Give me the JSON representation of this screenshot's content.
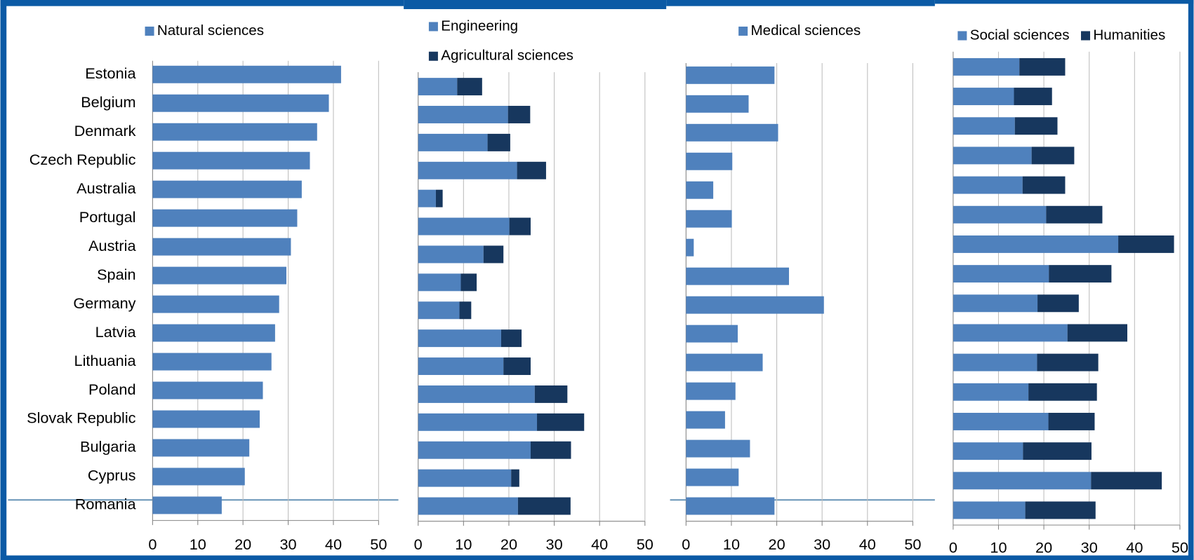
{
  "chart_data": [
    {
      "type": "bar",
      "orientation": "horizontal",
      "stacked": true,
      "categories": [
        "Estonia",
        "Belgium",
        "Denmark",
        "Czech Republic",
        "Australia",
        "Portugal",
        "Austria",
        "Spain",
        "Germany",
        "Latvia",
        "Lithuania",
        "Poland",
        "Slovak Republic",
        "Bulgaria",
        "Cyprus",
        "Romania"
      ],
      "series": [
        {
          "name": "Natural sciences",
          "color": "#4f81bd",
          "values": [
            41.7,
            39,
            36.4,
            34.8,
            33,
            32,
            30.6,
            29.6,
            28,
            27.1,
            26.3,
            24.4,
            23.7,
            21.4,
            20.4,
            15.3
          ]
        }
      ],
      "xlim": [
        0,
        50
      ],
      "xticks": [
        0,
        10,
        20,
        30,
        40,
        50
      ],
      "grid": true
    },
    {
      "type": "bar",
      "orientation": "horizontal",
      "stacked": true,
      "series": [
        {
          "name": "Engineering",
          "color": "#4f81bd",
          "values": [
            8.6,
            19.8,
            15.3,
            21.8,
            3.9,
            20.1,
            14.4,
            9.4,
            9.1,
            18.3,
            18.8,
            25.7,
            26.2,
            24.8,
            20.5,
            22
          ]
        },
        {
          "name": "Agricultural sciences",
          "color": "#17375e",
          "values": [
            5.5,
            4.9,
            5,
            6.4,
            1.5,
            4.7,
            4.4,
            3.5,
            2.6,
            4.5,
            6,
            7.2,
            10.4,
            8.9,
            1.8,
            11.6
          ]
        }
      ],
      "xlim": [
        0,
        50
      ],
      "xticks": [
        0,
        10,
        20,
        30,
        40,
        50
      ],
      "grid": true
    },
    {
      "type": "bar",
      "orientation": "horizontal",
      "stacked": true,
      "series": [
        {
          "name": "Medical sciences",
          "color": "#4f81bd",
          "values": [
            19.5,
            13.8,
            20.3,
            10.2,
            6,
            10.1,
            1.7,
            22.7,
            30.4,
            11.4,
            16.9,
            10.9,
            8.6,
            14.1,
            11.6,
            19.5
          ]
        }
      ],
      "xlim": [
        0,
        50
      ],
      "xticks": [
        0,
        10,
        20,
        30,
        40,
        50
      ],
      "grid": true
    },
    {
      "type": "bar",
      "orientation": "horizontal",
      "stacked": true,
      "series": [
        {
          "name": "Social sciences",
          "color": "#4f81bd",
          "values": [
            14.6,
            13.4,
            13.6,
            17.3,
            15.3,
            20.5,
            36.4,
            21.1,
            18.6,
            25.2,
            18.5,
            16.6,
            21,
            15.4,
            30.4,
            15.9
          ]
        },
        {
          "name": "Humanities",
          "color": "#17375e",
          "values": [
            10.1,
            8.4,
            9.4,
            9.4,
            9.4,
            12.4,
            12.3,
            13.8,
            9.1,
            13.2,
            13.5,
            15.1,
            10.2,
            15.1,
            15.6,
            15.5
          ]
        }
      ],
      "xlim": [
        0,
        50
      ],
      "xticks": [
        0,
        10,
        20,
        30,
        40,
        50
      ],
      "grid": true
    }
  ]
}
